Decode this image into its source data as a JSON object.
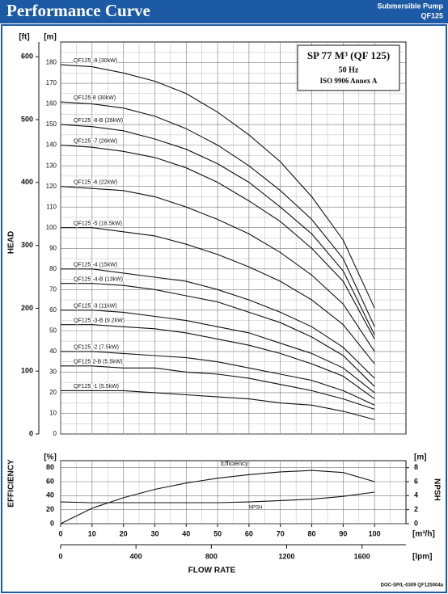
{
  "header": {
    "title": "Performance Curve",
    "subtitle": [
      "Submersible Pump",
      "QF125"
    ]
  },
  "chart_data": [
    {
      "type": "line",
      "y_label": "HEAD",
      "y_unit": "[m]",
      "y2_unit": "[ft]",
      "annotations": [
        "SP 77 M³ (QF 125)",
        "50 Hz",
        "ISO 9906 Annex A"
      ],
      "x": [
        0,
        10,
        20,
        30,
        40,
        50,
        60,
        70,
        80,
        90,
        100
      ],
      "xlim": [
        0,
        110
      ],
      "ylim": [
        0,
        190
      ],
      "yticks": [
        0,
        10,
        20,
        30,
        40,
        50,
        60,
        70,
        80,
        90,
        100,
        110,
        120,
        130,
        140,
        150,
        160,
        170,
        180
      ],
      "y2lim": [
        0,
        623.4
      ],
      "y2ticks": [
        0,
        100,
        200,
        300,
        400,
        500,
        600
      ],
      "grid": true,
      "series": [
        {
          "name": "QF125 -9 (30kW)",
          "color": "#111111",
          "values": [
            179,
            178,
            175,
            171,
            165,
            156,
            145,
            132,
            115,
            94,
            61
          ]
        },
        {
          "name": "QF125-8 (30kW)",
          "color": "#111111",
          "values": [
            161,
            160,
            158,
            154,
            148,
            140,
            130,
            118,
            104,
            85,
            52
          ]
        },
        {
          "name": "QF125 -8-B (26kW)",
          "color": "#111111",
          "values": [
            150,
            149,
            147,
            143,
            138,
            131,
            122,
            110,
            97,
            79,
            48
          ]
        },
        {
          "name": "QF125 -7 (26kW)",
          "color": "#111111",
          "values": [
            140,
            139,
            137,
            134,
            129,
            122,
            113,
            103,
            90,
            74,
            46
          ]
        },
        {
          "name": "QF125 -6 (22kW)",
          "color": "#111111",
          "values": [
            120,
            119,
            118,
            115,
            110,
            104,
            97,
            88,
            77,
            63,
            40
          ]
        },
        {
          "name": "QF125 -5 (18.5kW)",
          "color": "#111111",
          "values": [
            100,
            100,
            98,
            96,
            92,
            87,
            81,
            74,
            65,
            53,
            34
          ]
        },
        {
          "name": "QF125 -4 (15kW)",
          "color": "#111111",
          "values": [
            80,
            80,
            78,
            76,
            74,
            70,
            65,
            59,
            52,
            42,
            27
          ]
        },
        {
          "name": "QF125 -4-B (13kW)",
          "color": "#111111",
          "values": [
            73,
            73,
            72,
            70,
            67,
            64,
            59,
            54,
            47,
            38,
            23
          ]
        },
        {
          "name": "QF125 -3 (11kW)",
          "color": "#111111",
          "values": [
            60,
            60,
            59,
            57,
            55,
            52,
            49,
            44,
            39,
            32,
            20
          ]
        },
        {
          "name": "QF125 -3-B (9.2kW)",
          "color": "#111111",
          "values": [
            53,
            53,
            52,
            51,
            49,
            46,
            43,
            39,
            34,
            28,
            17
          ]
        },
        {
          "name": "QF125 -2 (7.5kW)",
          "color": "#111111",
          "values": [
            40,
            40,
            39,
            38,
            37,
            35,
            32,
            29,
            26,
            21,
            14
          ]
        },
        {
          "name": "QF125 2-B (5.5kW)",
          "color": "#111111",
          "values": [
            33,
            33,
            32,
            32,
            30,
            29,
            27,
            24,
            21,
            17,
            12
          ]
        },
        {
          "name": "QF125 -1 (5.5kW)",
          "color": "#111111",
          "values": [
            21,
            21,
            21,
            20,
            19,
            18,
            17,
            15,
            14,
            11,
            7
          ]
        }
      ]
    },
    {
      "type": "line",
      "y_label": "EFFICIENCY",
      "y_unit": "[%]",
      "y2_label": "NPSH",
      "y2_unit": "[m]",
      "x_label": "FLOW RATE",
      "x_unit": "[m³/h]",
      "x2_unit": "[lpm]",
      "footnote": "DOC-SP/L-0309 QF125004a",
      "x": [
        0,
        10,
        20,
        30,
        40,
        50,
        60,
        70,
        80,
        90,
        100
      ],
      "xlim": [
        0,
        110
      ],
      "xticks": [
        0,
        10,
        20,
        30,
        40,
        50,
        60,
        70,
        80,
        90,
        100
      ],
      "x2lim": [
        0,
        1833.3
      ],
      "x2ticks": [
        0,
        400,
        800,
        1200,
        1600
      ],
      "ylim": [
        0,
        90
      ],
      "yticks": [
        0,
        20,
        40,
        60,
        80
      ],
      "y2lim": [
        0,
        9
      ],
      "y2ticks": [
        0,
        2,
        4,
        6,
        8
      ],
      "grid": true,
      "series": [
        {
          "name": "Efficiency",
          "color": "#111111",
          "values": [
            0,
            22,
            37,
            49,
            58,
            65,
            70,
            74,
            76,
            73,
            60
          ]
        },
        {
          "name": "NPSH",
          "color": "#111111",
          "axis": "y2",
          "values": [
            3.1,
            3.0,
            3.0,
            3.0,
            3.0,
            3.0,
            3.1,
            3.3,
            3.5,
            3.9,
            4.5
          ]
        }
      ]
    }
  ]
}
